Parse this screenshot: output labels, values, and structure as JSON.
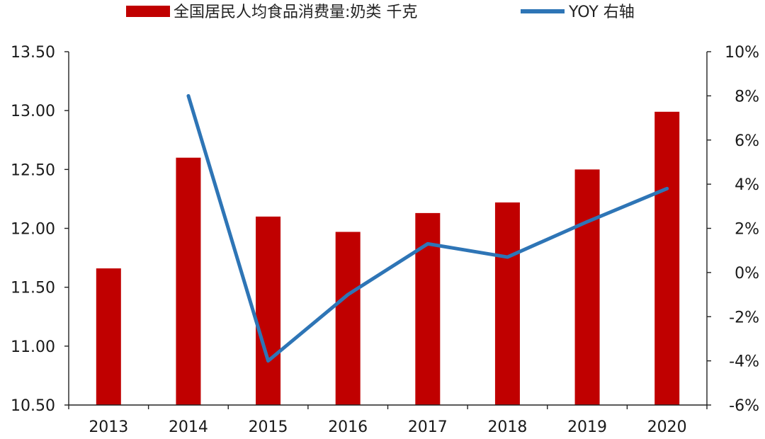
{
  "chart_data": {
    "type": "bar",
    "categories": [
      "2013",
      "2014",
      "2015",
      "2016",
      "2017",
      "2018",
      "2019",
      "2020"
    ],
    "series": [
      {
        "name": "全国居民人均食品消费量:奶类 千克",
        "type": "bar",
        "axis": "left",
        "color": "#c00000",
        "values": [
          11.66,
          12.6,
          12.1,
          11.97,
          12.13,
          12.22,
          12.5,
          12.99
        ]
      },
      {
        "name": "YOY 右轴",
        "type": "line",
        "axis": "right",
        "color": "#2e75b6",
        "values": [
          null,
          8.0,
          -4.0,
          -1.0,
          1.3,
          0.7,
          2.3,
          3.8
        ]
      }
    ],
    "y_left": {
      "lim": [
        10.5,
        13.5
      ],
      "ticks": [
        10.5,
        11.0,
        11.5,
        12.0,
        12.5,
        13.0,
        13.5
      ],
      "tick_labels": [
        "10.50",
        "11.00",
        "11.50",
        "12.00",
        "12.50",
        "13.00",
        "13.50"
      ]
    },
    "y_right": {
      "lim": [
        -6,
        10
      ],
      "ticks": [
        -6,
        -4,
        -2,
        0,
        2,
        4,
        6,
        8,
        10
      ],
      "tick_labels": [
        "-6%",
        "-4%",
        "-2%",
        "0%",
        "2%",
        "4%",
        "6%",
        "8%",
        "10%"
      ]
    },
    "title": "",
    "xlabel": "",
    "ylabel": "",
    "grid": false,
    "legend": "top"
  }
}
